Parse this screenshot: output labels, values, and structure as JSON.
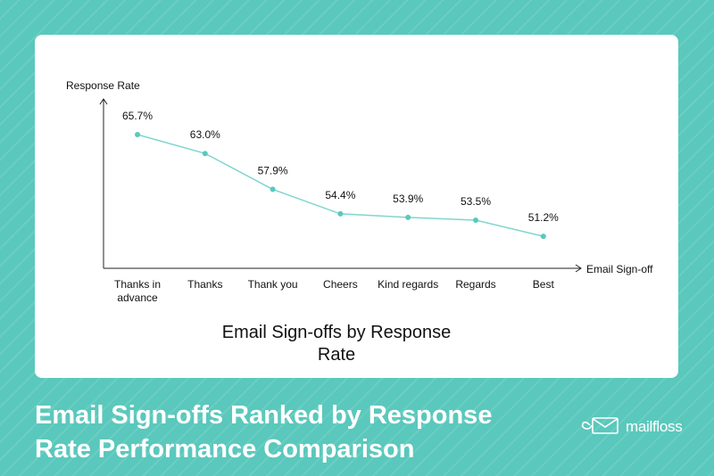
{
  "headline": {
    "line1": "Email Sign-offs Ranked by Response",
    "line2": "Rate Performance Comparison"
  },
  "brand": {
    "name": "mailfloss",
    "icon": "envelope-logo-icon"
  },
  "colors": {
    "background": "#5ac8bc",
    "accent": "#5ac8bc",
    "line": "#7fd6ce",
    "text": "#111111"
  },
  "chart_data": {
    "type": "line",
    "title": "Email Sign-offs by Response Rate",
    "xlabel": "Email Sign-off",
    "ylabel": "Response Rate",
    "categories": [
      "Thanks in advance",
      "Thanks",
      "Thank you",
      "Cheers",
      "Kind regards",
      "Regards",
      "Best"
    ],
    "category_lines": [
      [
        "Thanks in",
        "advance"
      ],
      [
        "Thanks"
      ],
      [
        "Thank you"
      ],
      [
        "Cheers"
      ],
      [
        "Kind regards"
      ],
      [
        "Regards"
      ],
      [
        "Best"
      ]
    ],
    "values": [
      65.7,
      63.0,
      57.9,
      54.4,
      53.9,
      53.5,
      51.2
    ],
    "value_labels": [
      "65.7%",
      "63.0%",
      "57.9%",
      "54.4%",
      "53.9%",
      "53.5%",
      "51.2%"
    ],
    "ylim": [
      48.8,
      65.7
    ],
    "grid": false,
    "legend": "none"
  }
}
